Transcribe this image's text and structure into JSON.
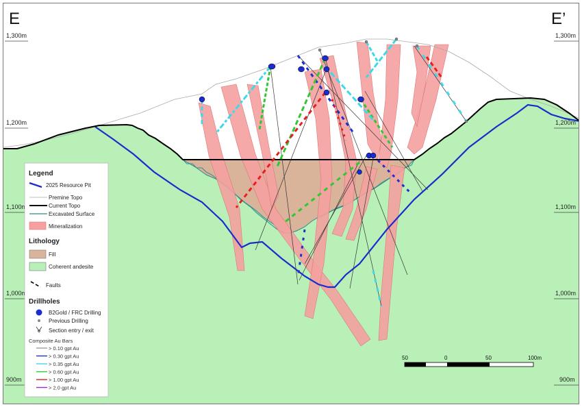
{
  "section": {
    "left_label": "E",
    "right_label": "E’"
  },
  "elevations": [
    "1,300m",
    "1,200m",
    "1,100m",
    "1,000m",
    "900m"
  ],
  "legend": {
    "title": "Legend",
    "resource_pit": "2025 Resource Pit",
    "premine_topo": "Premine Topo",
    "current_topo": "Current Topo",
    "excavated_surface": "Excavated Surface",
    "mineralization": "Mineralization",
    "lithology_title": "Lithology",
    "fill": "Fill",
    "coherent_andesite": "Coherent andesite",
    "faults": "Faults",
    "drillholes_title": "Drillholes",
    "b2gold_drilling": "B2Gold / FRC Drilling",
    "previous_drilling": "Previous Drilling",
    "section_entry": "Section entry / exit",
    "composite_title": "Composite Au Bars",
    "grades": [
      {
        "label": "> 0.10 gpt Au",
        "color": "#9e9e9e"
      },
      {
        "label": "> 0.30 gpt Au",
        "color": "#1f2fd0"
      },
      {
        "label": "> 0.35 gpt Au",
        "color": "#3fd8e8"
      },
      {
        "label": "> 0.60 gpt Au",
        "color": "#33c533"
      },
      {
        "label": "> 1.00 gpt Au",
        "color": "#e41f1f"
      },
      {
        "label": "> 2.0 gpt Au",
        "color": "#9c2bbf"
      }
    ]
  },
  "scale_bar": {
    "labels": [
      "50",
      "0",
      "50",
      "100m"
    ]
  },
  "colors": {
    "andesite": "#b8f0b8",
    "fill": "#d9b49a",
    "mineralization": "#f4a0a0",
    "pit": "#1a2ccc",
    "excavated": "#2e8b8b"
  }
}
